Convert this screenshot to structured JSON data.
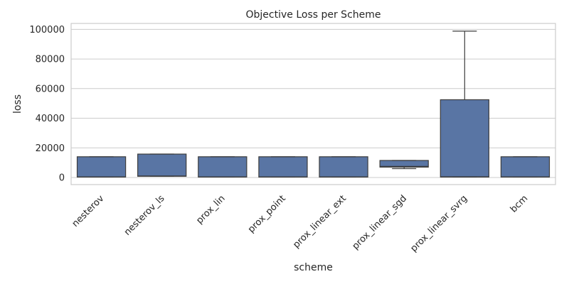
{
  "chart_data": {
    "type": "box",
    "title": "Objective Loss per Scheme",
    "xlabel": "scheme",
    "ylabel": "loss",
    "ylim": [
      -4800,
      104000
    ],
    "yticks": [
      0,
      20000,
      40000,
      60000,
      80000,
      100000
    ],
    "grid": true,
    "box_color": "#5975a4",
    "edge_color": "#3d3d3d",
    "categories": [
      "nesterov",
      "nesterov_ls",
      "prox_lin",
      "prox_point",
      "prox_linear_ext",
      "prox_linear_sgd",
      "prox_linear_svrg",
      "bcm"
    ],
    "boxes": [
      {
        "category": "nesterov",
        "whisker_low": 300,
        "q1": 300,
        "median": 400,
        "q3": 14000,
        "whisker_high": 14000
      },
      {
        "category": "nesterov_ls",
        "whisker_low": 800,
        "q1": 800,
        "median": 1000,
        "q3": 15800,
        "whisker_high": 15800
      },
      {
        "category": "prox_lin",
        "whisker_low": 300,
        "q1": 300,
        "median": 400,
        "q3": 14000,
        "whisker_high": 14000
      },
      {
        "category": "prox_point",
        "whisker_low": 300,
        "q1": 300,
        "median": 400,
        "q3": 14000,
        "whisker_high": 14000
      },
      {
        "category": "prox_linear_ext",
        "whisker_low": 300,
        "q1": 300,
        "median": 400,
        "q3": 14000,
        "whisker_high": 14000
      },
      {
        "category": "prox_linear_sgd",
        "whisker_low": 6000,
        "q1": 7000,
        "median": 7500,
        "q3": 11500,
        "whisker_high": 11500
      },
      {
        "category": "prox_linear_svrg",
        "whisker_low": 300,
        "q1": 300,
        "median": 500,
        "q3": 52500,
        "whisker_high": 98800
      },
      {
        "category": "bcm",
        "whisker_low": 300,
        "q1": 300,
        "median": 400,
        "q3": 14000,
        "whisker_high": 14000
      }
    ]
  }
}
